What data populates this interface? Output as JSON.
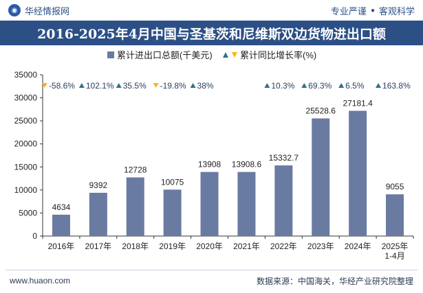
{
  "header": {
    "brand": "华经情报网",
    "brand_icon": "huajing-logo-icon",
    "tag_left": "专业严谨",
    "tag_sep": "●",
    "tag_right": "客观科学"
  },
  "footer": {
    "website": "www.huaon.com",
    "source": "数据来源：中国海关，华经产业研究院整理"
  },
  "colors": {
    "bar": "#6a7ba2",
    "title_bg": "#2c4f86",
    "up": "#2f6f8f",
    "down": "#f2b817"
  },
  "chart_data": {
    "type": "bar",
    "title": "2016-2025年4月中国与圣基茨和尼维斯双边货物进出口额",
    "categories": [
      "2016年",
      "2017年",
      "2018年",
      "2019年",
      "2020年",
      "2021年",
      "2022年",
      "2023年",
      "2024年",
      "2025年\n1-4月"
    ],
    "series": [
      {
        "name": "累计进出口总额(千美元)",
        "values": [
          4634,
          9392,
          12728,
          10075,
          13908,
          13908.6,
          15332.7,
          25528.6,
          27181.4,
          9055
        ],
        "labels": [
          "4634",
          "9392",
          "12728",
          "10075",
          "13908",
          "13908.6",
          "15332.7",
          "25528.6",
          "27181.4",
          "9055"
        ]
      },
      {
        "name": "累计同比增长率(%)",
        "values": [
          -58.6,
          102.1,
          35.5,
          -19.8,
          38,
          null,
          10.3,
          69.3,
          6.5,
          163.8
        ],
        "labels": [
          "-58.6%",
          "102.1%",
          "35.5%",
          "-19.8%",
          "38%",
          "",
          "10.3%",
          "69.3%",
          "6.5%",
          "163.8%"
        ]
      }
    ],
    "ylim": [
      0,
      35000
    ],
    "yticks": [
      0,
      5000,
      10000,
      15000,
      20000,
      25000,
      30000,
      35000
    ],
    "ytick_labels": [
      "0",
      "5000",
      "10000",
      "15000",
      "20000",
      "25000",
      "30000",
      "35000"
    ],
    "legend_position": "top-center"
  }
}
